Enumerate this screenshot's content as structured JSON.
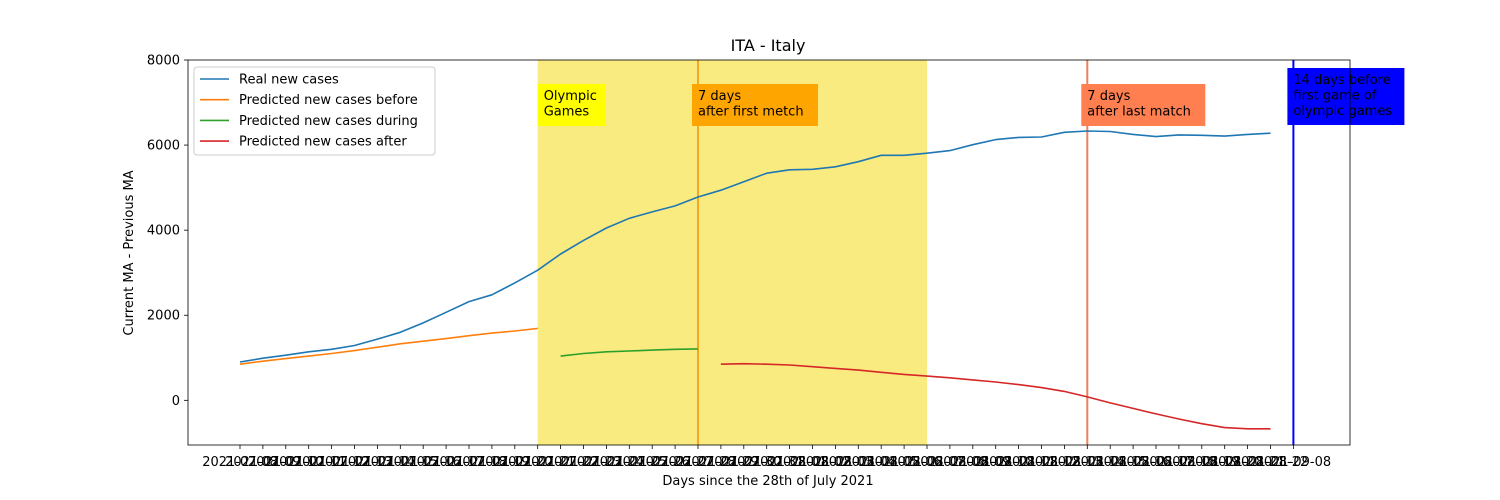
{
  "chart_data": {
    "type": "line",
    "title": "ITA - Italy",
    "xlabel": "Days since the 28th of July 2021",
    "ylabel": "Current MA - Previous MA",
    "ylim": [
      -1050,
      8000
    ],
    "yticks": [
      0,
      2000,
      4000,
      6000,
      8000
    ],
    "grid": false,
    "legend_position": "top-left",
    "x_tick_labels": {
      "first": "2021-07-08",
      "last": "2021-09-08"
    },
    "series": [
      {
        "name": "Real new cases",
        "color": "#1f77b4",
        "x_start": 0,
        "values": [
          900,
          990,
          1060,
          1140,
          1200,
          1290,
          1440,
          1600,
          1820,
          2070,
          2320,
          2480,
          2760,
          3060,
          3440,
          3760,
          4050,
          4280,
          4430,
          4570,
          4780,
          4940,
          5140,
          5340,
          5420,
          5430,
          5490,
          5610,
          5760,
          5760,
          5810,
          5870,
          6010,
          6130,
          6180,
          6190,
          6300,
          6330,
          6320,
          6250,
          6200,
          6240,
          6230,
          6210,
          6250,
          6280
        ]
      },
      {
        "name": "Predicted new cases before",
        "color": "#ff7f0e",
        "x_start": 0,
        "values": [
          850,
          920,
          980,
          1040,
          1100,
          1170,
          1250,
          1330,
          1390,
          1450,
          1520,
          1580,
          1630,
          1690
        ]
      },
      {
        "name": "Predicted new cases during",
        "color": "#2ca02c",
        "x_start": 14,
        "values": [
          1040,
          1100,
          1140,
          1160,
          1180,
          1200,
          1210
        ]
      },
      {
        "name": "Predicted new cases after",
        "color": "#d62728",
        "x_start": 21,
        "values": [
          850,
          860,
          850,
          830,
          790,
          750,
          710,
          660,
          610,
          570,
          530,
          480,
          430,
          370,
          300,
          210,
          80,
          -60,
          -190,
          -320,
          -440,
          -550,
          -640,
          -670,
          -670
        ]
      }
    ],
    "shaded_regions": [
      {
        "label": "Olympic\nGames",
        "x_start": 13,
        "x_end": 30,
        "color": "#f6e03a"
      }
    ],
    "vertical_lines": [
      {
        "x": 20,
        "color": "#f5a623",
        "label": "7 days\nafter first metch",
        "label_bg": "#ffa500",
        "label_color": "#000000"
      },
      {
        "x": 37,
        "color": "#f0805a",
        "label": "7 days\nafter last match",
        "label_bg": "#ff7f50",
        "label_color": "#000000"
      },
      {
        "x": 46,
        "color": "#0000ff",
        "label": "14 days before\nfirst game of\nolympic games",
        "label_bg": "#0000ff",
        "label_color": "#ffffff"
      }
    ],
    "annotations": [
      {
        "text": "Olympic\nGames",
        "bg": "#ffff00",
        "color": "#000000"
      }
    ]
  }
}
